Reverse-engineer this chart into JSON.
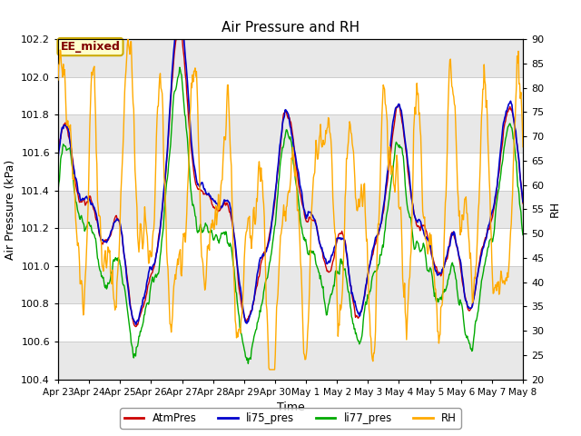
{
  "title": "Air Pressure and RH",
  "xlabel": "Time",
  "ylabel_left": "Air Pressure (kPa)",
  "ylabel_right": "RH",
  "ylim_left": [
    100.4,
    102.2
  ],
  "ylim_right": [
    20,
    90
  ],
  "yticks_left": [
    100.4,
    100.6,
    100.8,
    101.0,
    101.2,
    101.4,
    101.6,
    101.8,
    102.0,
    102.2
  ],
  "yticks_right": [
    20,
    25,
    30,
    35,
    40,
    45,
    50,
    55,
    60,
    65,
    70,
    75,
    80,
    85,
    90
  ],
  "xtick_labels": [
    "Apr 23",
    "Apr 24",
    "Apr 25",
    "Apr 26",
    "Apr 27",
    "Apr 28",
    "Apr 29",
    "Apr 30",
    "May 1",
    "May 2",
    "May 3",
    "May 4",
    "May 5",
    "May 6",
    "May 7",
    "May 8"
  ],
  "annotation_text": "EE_mixed",
  "annotation_box_color": "#ffffcc",
  "annotation_text_color": "#800000",
  "annotation_border_color": "#ccaa00",
  "colors": {
    "AtmPres": "#cc0000",
    "li75_pres": "#0000cc",
    "li77_pres": "#00aa00",
    "RH": "#ffaa00"
  },
  "legend_labels": [
    "AtmPres",
    "li75_pres",
    "li77_pres",
    "RH"
  ],
  "plot_bg_color": "#ffffff",
  "stripe_color": "#e0e0e0",
  "grid_color": "#cccccc",
  "title_fontsize": 11,
  "axis_label_fontsize": 9,
  "tick_fontsize": 8
}
